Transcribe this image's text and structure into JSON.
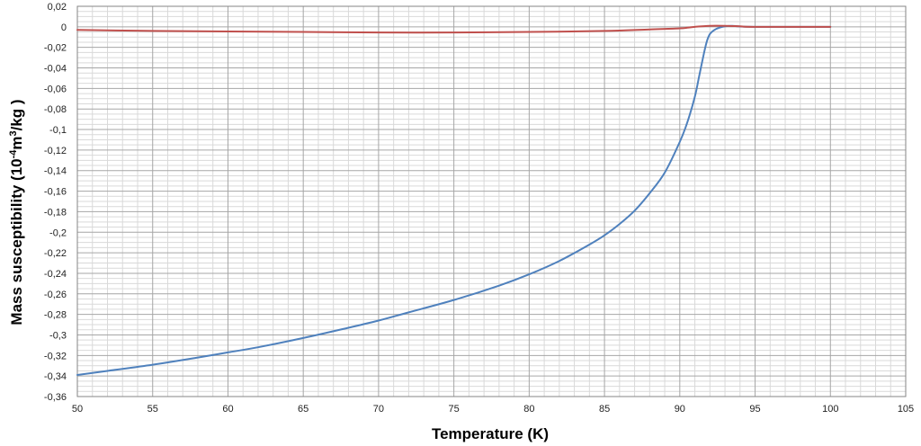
{
  "chart_data": {
    "type": "line",
    "xlabel": "Temperature (K)",
    "ylabel_main": "Mass  susceptibility (10",
    "ylabel_exp1": "-4",
    "ylabel_mid": "m",
    "ylabel_exp2": "3",
    "ylabel_end": "/kg )",
    "xlim": [
      50,
      105
    ],
    "ylim": [
      -0.36,
      0.02
    ],
    "x_major_step": 5,
    "x_minor_step": 1,
    "y_major_step": 0.02,
    "y_minor_step": 0.005,
    "grid": true,
    "legend": "none",
    "x_tick_labels": [
      "50",
      "55",
      "60",
      "65",
      "70",
      "75",
      "80",
      "85",
      "90",
      "95",
      "100",
      "105"
    ],
    "y_tick_labels": [
      "0,02",
      "0",
      "-0,02",
      "-0,04",
      "-0,06",
      "-0,08",
      "-0,1",
      "-0,12",
      "-0,14",
      "-0,16",
      "-0,18",
      "-0,2",
      "-0,22",
      "-0,24",
      "-0,26",
      "-0,28",
      "-0,3",
      "-0,32",
      "-0,34",
      "-0,36"
    ],
    "series": [
      {
        "color": "#4f81bd",
        "x": [
          50,
          52,
          55,
          58,
          60,
          62,
          65,
          68,
          70,
          72,
          75,
          78,
          80,
          82,
          84,
          85,
          86,
          87,
          88,
          89,
          90,
          90.5,
          91,
          91.3,
          91.6,
          91.8,
          92,
          92.3,
          92.6,
          93,
          93.5,
          94,
          95,
          96,
          98,
          100
        ],
        "y": [
          -0.339,
          -0.335,
          -0.329,
          -0.322,
          -0.317,
          -0.312,
          -0.303,
          -0.293,
          -0.286,
          -0.278,
          -0.266,
          -0.252,
          -0.241,
          -0.228,
          -0.212,
          -0.203,
          -0.192,
          -0.179,
          -0.162,
          -0.142,
          -0.112,
          -0.093,
          -0.068,
          -0.047,
          -0.026,
          -0.014,
          -0.007,
          -0.003,
          -0.001,
          0.0005,
          0.001,
          0.0003,
          0,
          0,
          0,
          0
        ]
      },
      {
        "color": "#c0504d",
        "x": [
          50,
          55,
          60,
          65,
          70,
          75,
          80,
          85,
          88,
          90,
          91,
          92,
          93,
          94,
          95,
          100
        ],
        "y": [
          -0.003,
          -0.004,
          -0.0045,
          -0.005,
          -0.0055,
          -0.0055,
          -0.005,
          -0.004,
          -0.0025,
          -0.0015,
          0,
          0.001,
          0.001,
          0.0005,
          0,
          0
        ]
      }
    ]
  }
}
